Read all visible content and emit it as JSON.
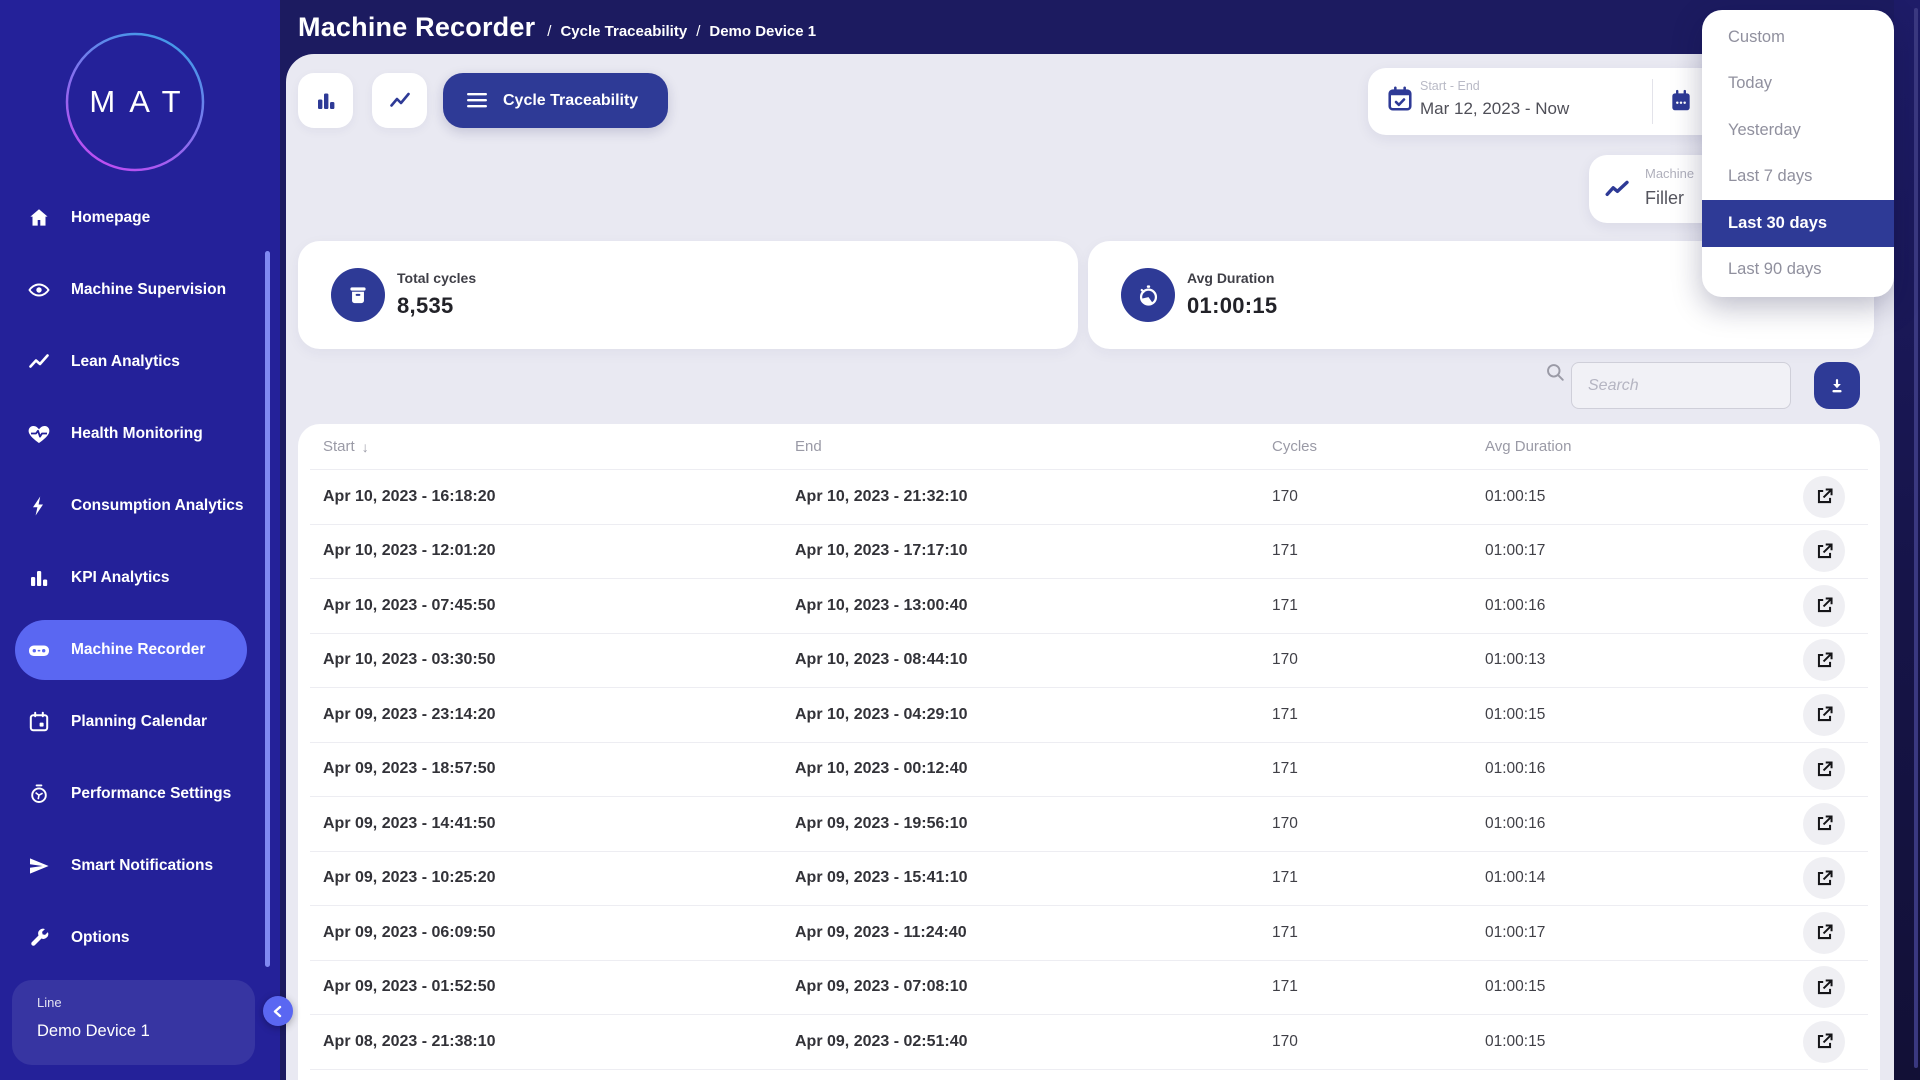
{
  "brand": {
    "logo_text": "MAT"
  },
  "sidebar": {
    "items": [
      {
        "label": "Homepage",
        "icon": "home-icon",
        "active": false
      },
      {
        "label": "Machine Supervision",
        "icon": "eye-icon",
        "active": false
      },
      {
        "label": "Lean Analytics",
        "icon": "trend-icon",
        "active": false
      },
      {
        "label": "Health Monitoring",
        "icon": "heart-pulse-icon",
        "active": false
      },
      {
        "label": "Consumption Analytics",
        "icon": "bolt-icon",
        "active": false
      },
      {
        "label": "KPI Analytics",
        "icon": "bar-chart-icon",
        "active": false
      },
      {
        "label": "Machine Recorder",
        "icon": "recorder-icon",
        "active": true
      },
      {
        "label": "Planning Calendar",
        "icon": "calendar-icon",
        "active": false
      },
      {
        "label": "Performance Settings",
        "icon": "gauge-icon",
        "active": false
      },
      {
        "label": "Smart Notifications",
        "icon": "send-icon",
        "active": false
      },
      {
        "label": "Options",
        "icon": "wrench-icon",
        "active": false
      }
    ],
    "device_panel": {
      "label": "Line",
      "value": "Demo Device 1"
    }
  },
  "header": {
    "title": "Machine Recorder",
    "breadcrumb_separator": "/",
    "breadcrumbs": [
      "Cycle Traceability",
      "Demo Device 1"
    ]
  },
  "toolbar": {
    "view_button_label": "Cycle Traceability"
  },
  "date_range": {
    "label": "Start - End",
    "value": "Mar 12, 2023 - Now"
  },
  "machine_filter": {
    "label": "Machine",
    "value": "Filler"
  },
  "date_menu": {
    "items": [
      "Custom",
      "Today",
      "Yesterday",
      "Last 7 days",
      "Last 30 days",
      "Last 90 days"
    ],
    "selected": "Last 30 days"
  },
  "stats": [
    {
      "label": "Total cycles",
      "value": "8,535",
      "icon": "cycles-icon"
    },
    {
      "label": "Avg Duration",
      "value": "01:00:15",
      "icon": "stopwatch-icon"
    }
  ],
  "search": {
    "placeholder": "Search"
  },
  "table": {
    "columns": [
      "Start",
      "End",
      "Cycles",
      "Avg Duration"
    ],
    "sort": {
      "column": "Start",
      "glyph": "↓"
    },
    "rows": [
      {
        "start": "Apr 10, 2023 - 16:18:20",
        "end": "Apr 10, 2023 - 21:32:10",
        "cycles": "170",
        "avg_duration": "01:00:15"
      },
      {
        "start": "Apr 10, 2023 - 12:01:20",
        "end": "Apr 10, 2023 - 17:17:10",
        "cycles": "171",
        "avg_duration": "01:00:17"
      },
      {
        "start": "Apr 10, 2023 - 07:45:50",
        "end": "Apr 10, 2023 - 13:00:40",
        "cycles": "171",
        "avg_duration": "01:00:16"
      },
      {
        "start": "Apr 10, 2023 - 03:30:50",
        "end": "Apr 10, 2023 - 08:44:10",
        "cycles": "170",
        "avg_duration": "01:00:13"
      },
      {
        "start": "Apr 09, 2023 - 23:14:20",
        "end": "Apr 10, 2023 - 04:29:10",
        "cycles": "171",
        "avg_duration": "01:00:15"
      },
      {
        "start": "Apr 09, 2023 - 18:57:50",
        "end": "Apr 10, 2023 - 00:12:40",
        "cycles": "171",
        "avg_duration": "01:00:16"
      },
      {
        "start": "Apr 09, 2023 - 14:41:50",
        "end": "Apr 09, 2023 - 19:56:10",
        "cycles": "170",
        "avg_duration": "01:00:16"
      },
      {
        "start": "Apr 09, 2023 - 10:25:20",
        "end": "Apr 09, 2023 - 15:41:10",
        "cycles": "171",
        "avg_duration": "01:00:14"
      },
      {
        "start": "Apr 09, 2023 - 06:09:50",
        "end": "Apr 09, 2023 - 11:24:40",
        "cycles": "171",
        "avg_duration": "01:00:17"
      },
      {
        "start": "Apr 09, 2023 - 01:52:50",
        "end": "Apr 09, 2023 - 07:08:10",
        "cycles": "171",
        "avg_duration": "01:00:15"
      },
      {
        "start": "Apr 08, 2023 - 21:38:10",
        "end": "Apr 09, 2023 - 02:51:40",
        "cycles": "170",
        "avg_duration": "01:00:15"
      }
    ]
  }
}
